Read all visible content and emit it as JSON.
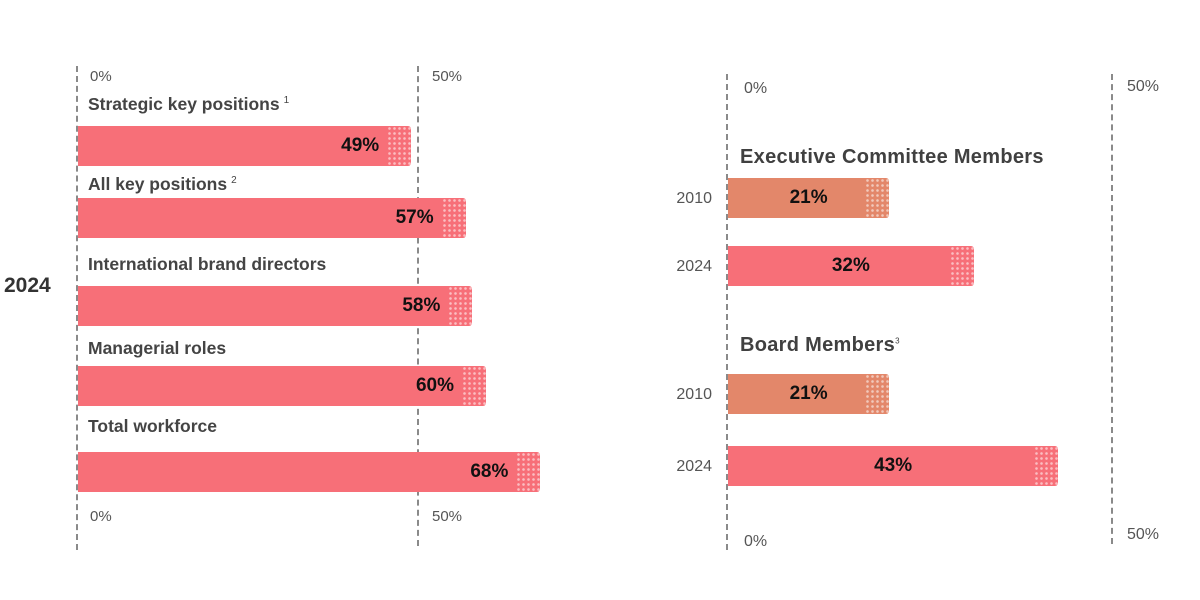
{
  "left": {
    "side_year": "2024",
    "axis_top": {
      "min_label": "0%",
      "max_label": "50%"
    },
    "axis_bottom": {
      "min_label": "0%",
      "max_label": "50%"
    }
  },
  "right": {
    "axis_top": {
      "min_label": "0%",
      "max_label": "50%"
    },
    "axis_bottom": {
      "min_label": "0%",
      "max_label": "50%"
    }
  },
  "colors": {
    "pink": "#f76f78",
    "orange": "#e3876a"
  },
  "chart_data": [
    {
      "type": "bar",
      "orientation": "horizontal",
      "categories": [
        "Strategic key positions",
        "All key positions",
        "International brand directors",
        "Managerial roles",
        "Total workforce"
      ],
      "footnotes": [
        "1",
        "2",
        "",
        "",
        ""
      ],
      "values": [
        49,
        57,
        58,
        60,
        68
      ],
      "value_labels": [
        "49%",
        "57%",
        "58%",
        "60%",
        "68%"
      ],
      "ylabel": "2024",
      "xlim": [
        0,
        50
      ],
      "x_ticks": [
        "0%",
        "50%"
      ]
    },
    {
      "type": "bar",
      "orientation": "horizontal",
      "groups": [
        {
          "label": "Executive Committee Members",
          "footnote": "",
          "bars": [
            {
              "year": "2010",
              "value": 21,
              "value_label": "21%",
              "color": "#e3876a"
            },
            {
              "year": "2024",
              "value": 32,
              "value_label": "32%",
              "color": "#f76f78"
            }
          ]
        },
        {
          "label": "Board Members",
          "footnote": "3",
          "bars": [
            {
              "year": "2010",
              "value": 21,
              "value_label": "21%",
              "color": "#e3876a"
            },
            {
              "year": "2024",
              "value": 43,
              "value_label": "43%",
              "color": "#f76f78"
            }
          ]
        }
      ],
      "xlim": [
        0,
        50
      ],
      "x_ticks": [
        "0%",
        "50%"
      ]
    }
  ]
}
